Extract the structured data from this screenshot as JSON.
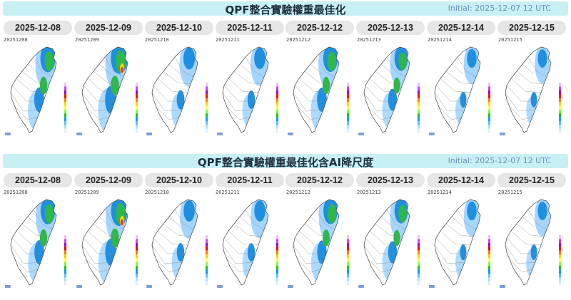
{
  "sections": [
    {
      "title": "QPF整合實驗權重最佳化",
      "initial": "Initial: 2025-12-07 12 UTC",
      "days": [
        {
          "date": "2025-12-08",
          "code": "20251208",
          "level": 0.75
        },
        {
          "date": "2025-12-09",
          "code": "20251209",
          "level": 0.95
        },
        {
          "date": "2025-12-10",
          "code": "20251210",
          "level": 0.35
        },
        {
          "date": "2025-12-11",
          "code": "20251211",
          "level": 0.3
        },
        {
          "date": "2025-12-12",
          "code": "20251212",
          "level": 0.7
        },
        {
          "date": "2025-12-13",
          "code": "20251213",
          "level": 0.55
        },
        {
          "date": "2025-12-14",
          "code": "20251214",
          "level": 0.12
        },
        {
          "date": "2025-12-15",
          "code": "20251215",
          "level": 0.08
        }
      ]
    },
    {
      "title": "QPF整合實驗權重最佳化含AI降尺度",
      "initial": "Initial: 2025-12-07 12 UTC",
      "days": [
        {
          "date": "2025-12-08",
          "code": "20251208",
          "level": 0.7
        },
        {
          "date": "2025-12-09",
          "code": "20251209",
          "level": 0.9
        },
        {
          "date": "2025-12-10",
          "code": "20251210",
          "level": 0.3
        },
        {
          "date": "2025-12-11",
          "code": "20251211",
          "level": 0.28
        },
        {
          "date": "2025-12-12",
          "code": "20251212",
          "level": 0.65
        },
        {
          "date": "2025-12-13",
          "code": "20251213",
          "level": 0.55
        },
        {
          "date": "2025-12-14",
          "code": "20251214",
          "level": 0.12
        },
        {
          "date": "2025-12-15",
          "code": "20251215",
          "level": 0.1
        }
      ]
    }
  ],
  "colors": {
    "header_bg": "#c8f0f4",
    "tab_bg": "#e6e6e6",
    "initial_text": "#6f8fb8",
    "rain_light": "#9fd3ff",
    "rain_mid": "#1f8fe0",
    "rain_heavy": "#2fb84a",
    "rain_extreme": "#e83a2a"
  }
}
